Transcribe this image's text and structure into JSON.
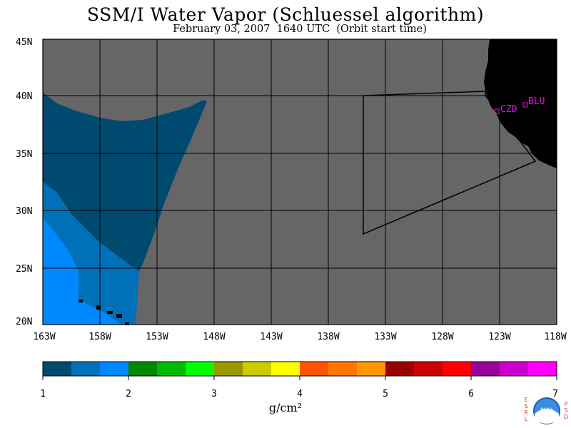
{
  "title": "SSM/I Water Vapor (Schluessel algorithm)",
  "subtitle": "February 03, 2007  1640 UTC  (Orbit start time)",
  "map": {
    "lat_labels": [
      "45N",
      "40N",
      "35N",
      "30N",
      "25N",
      "20N"
    ],
    "lon_labels": [
      "163W",
      "158W",
      "153W",
      "148W",
      "143W",
      "138W",
      "133W",
      "128W",
      "123W",
      "118W"
    ],
    "stations": [
      {
        "name": "CZD",
        "lat": 38.6,
        "lon": -122.9
      },
      {
        "name": "BLU",
        "lat": 39.3,
        "lon": -120.8
      }
    ],
    "no_data_color": "#666666",
    "land_color": "#000000",
    "station_color": "#ff00ff"
  },
  "colorbar": {
    "tick_labels": [
      "1",
      "2",
      "3",
      "4",
      "5",
      "6",
      "7"
    ],
    "units": "g/cm²",
    "colors": [
      "#004a70",
      "#0070b8",
      "#0088ff",
      "#008800",
      "#00bb00",
      "#00ff00",
      "#999900",
      "#cccc00",
      "#ffff00",
      "#ff5500",
      "#ff7700",
      "#ff9900",
      "#990000",
      "#cc0000",
      "#ff0000",
      "#990099",
      "#cc00cc",
      "#ff00ff"
    ]
  },
  "logo": {
    "text": "NOAA",
    "left_text": "ESRL",
    "right_text": "PSD"
  }
}
